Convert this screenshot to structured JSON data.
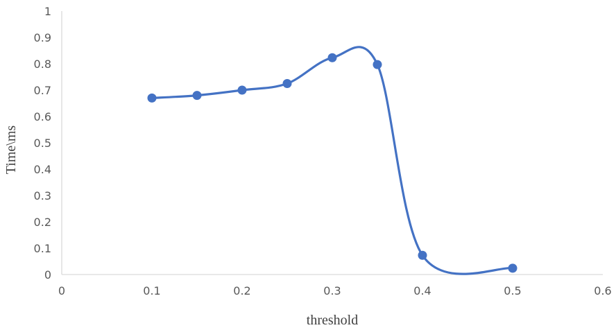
{
  "chart_data": {
    "type": "scatter",
    "title": "",
    "xlabel": "threshold",
    "ylabel": "Time\\ms",
    "xlim": [
      0,
      0.6
    ],
    "ylim": [
      0,
      1
    ],
    "x_ticks": [
      "0",
      "0.1",
      "0.2",
      "0.3",
      "0.4",
      "0.5",
      "0.6"
    ],
    "y_ticks": [
      "0",
      "0.1",
      "0.2",
      "0.3",
      "0.4",
      "0.5",
      "0.6",
      "0.7",
      "0.8",
      "0.9",
      "1"
    ],
    "grid": false,
    "legend": "none",
    "line_style": "smoothed line with markers",
    "series": [
      {
        "color": "#4472c4",
        "x": [
          0.1,
          0.15,
          0.2,
          0.25,
          0.3,
          0.35,
          0.4,
          0.5
        ],
        "y": [
          0.67,
          0.68,
          0.7,
          0.725,
          0.823,
          0.797,
          0.073,
          0.024
        ]
      }
    ]
  }
}
